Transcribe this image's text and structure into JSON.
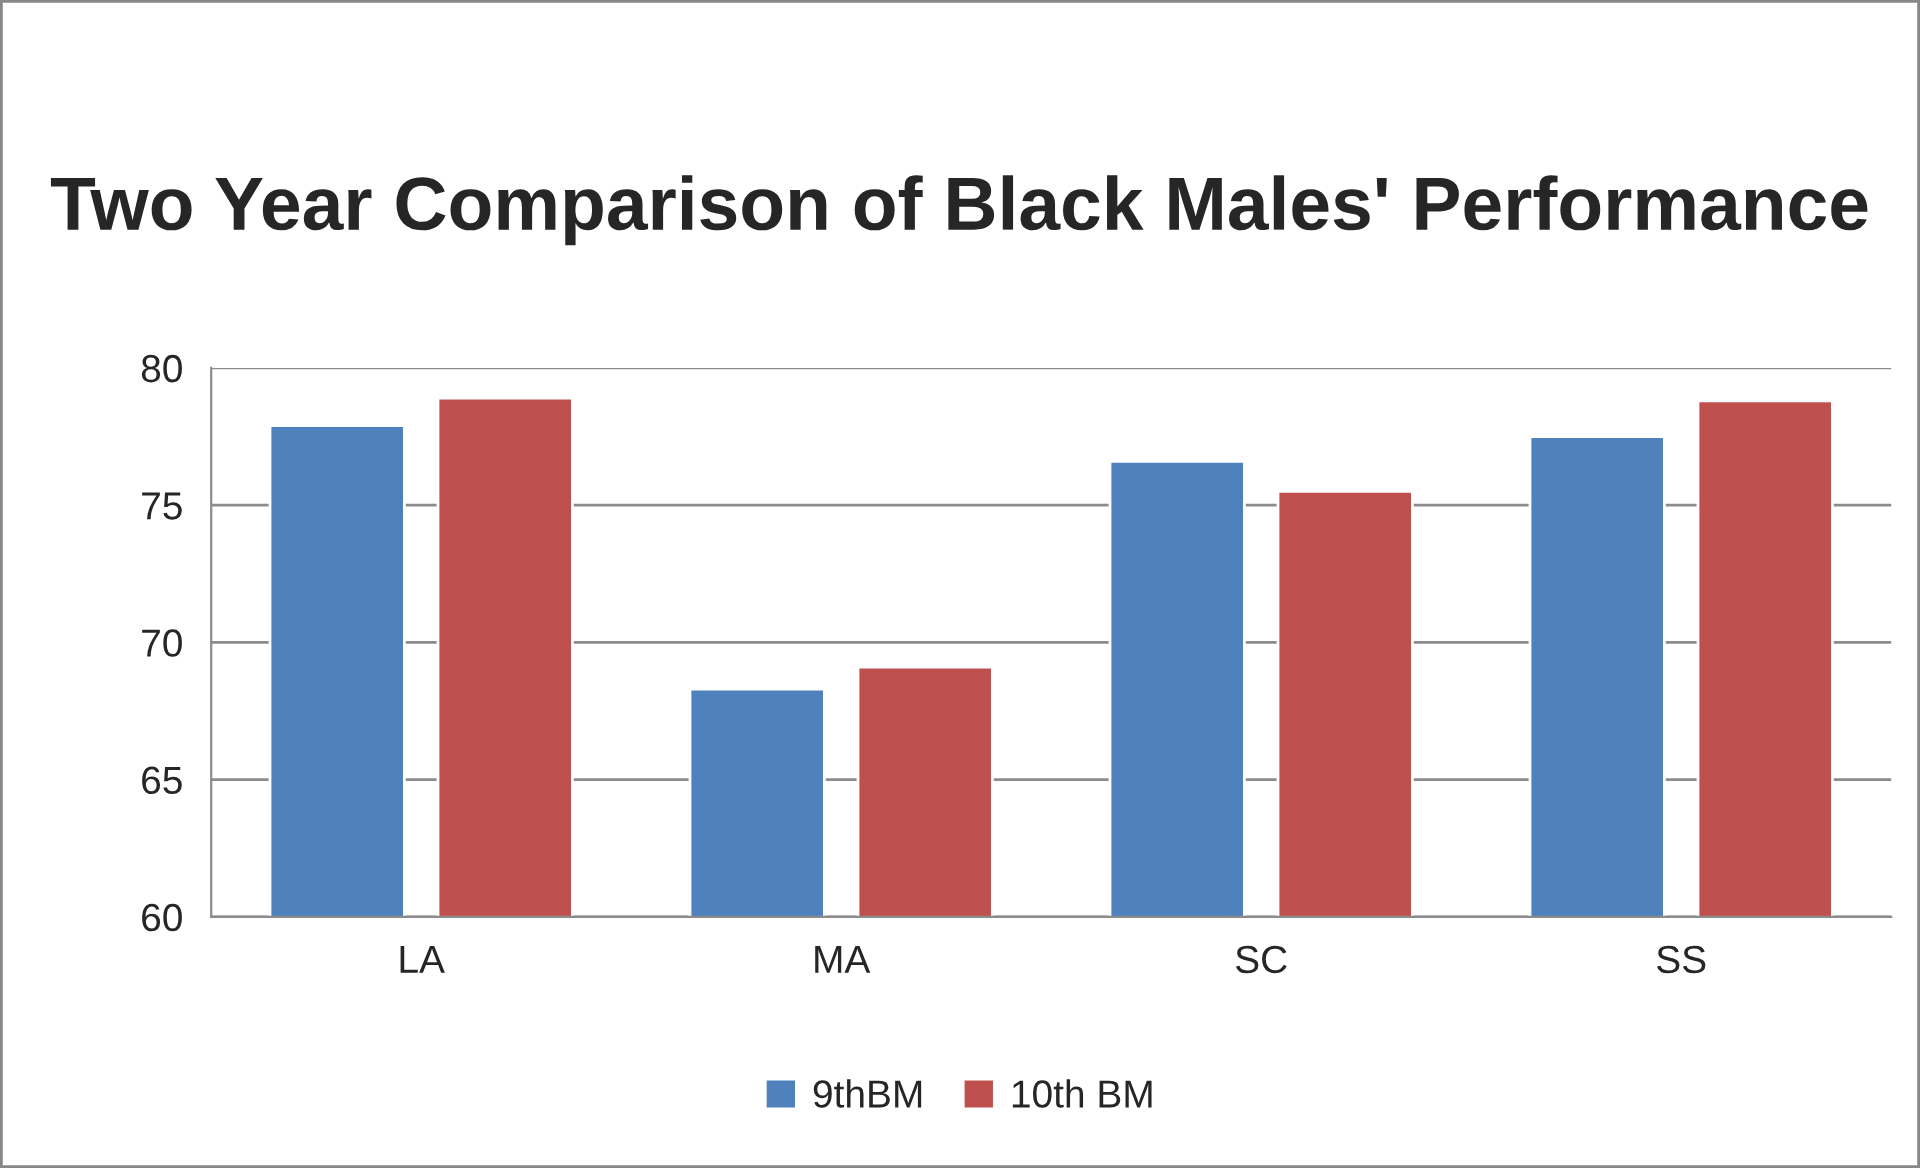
{
  "chart_data": {
    "type": "bar",
    "title": "Two Year Comparison of Black Males' Performance",
    "categories": [
      "LA",
      "MA",
      "SC",
      "SS"
    ],
    "series": [
      {
        "name": "9thBM",
        "color": "#4f81bd",
        "values": [
          77.9,
          68.3,
          76.6,
          77.5
        ]
      },
      {
        "name": "10th BM",
        "color": "#c0504d",
        "values": [
          78.9,
          69.1,
          75.5,
          78.8
        ]
      }
    ],
    "ylim": [
      60,
      80
    ],
    "yticks": [
      60,
      65,
      70,
      75,
      80
    ],
    "grid": "y",
    "legend": "bottom"
  }
}
